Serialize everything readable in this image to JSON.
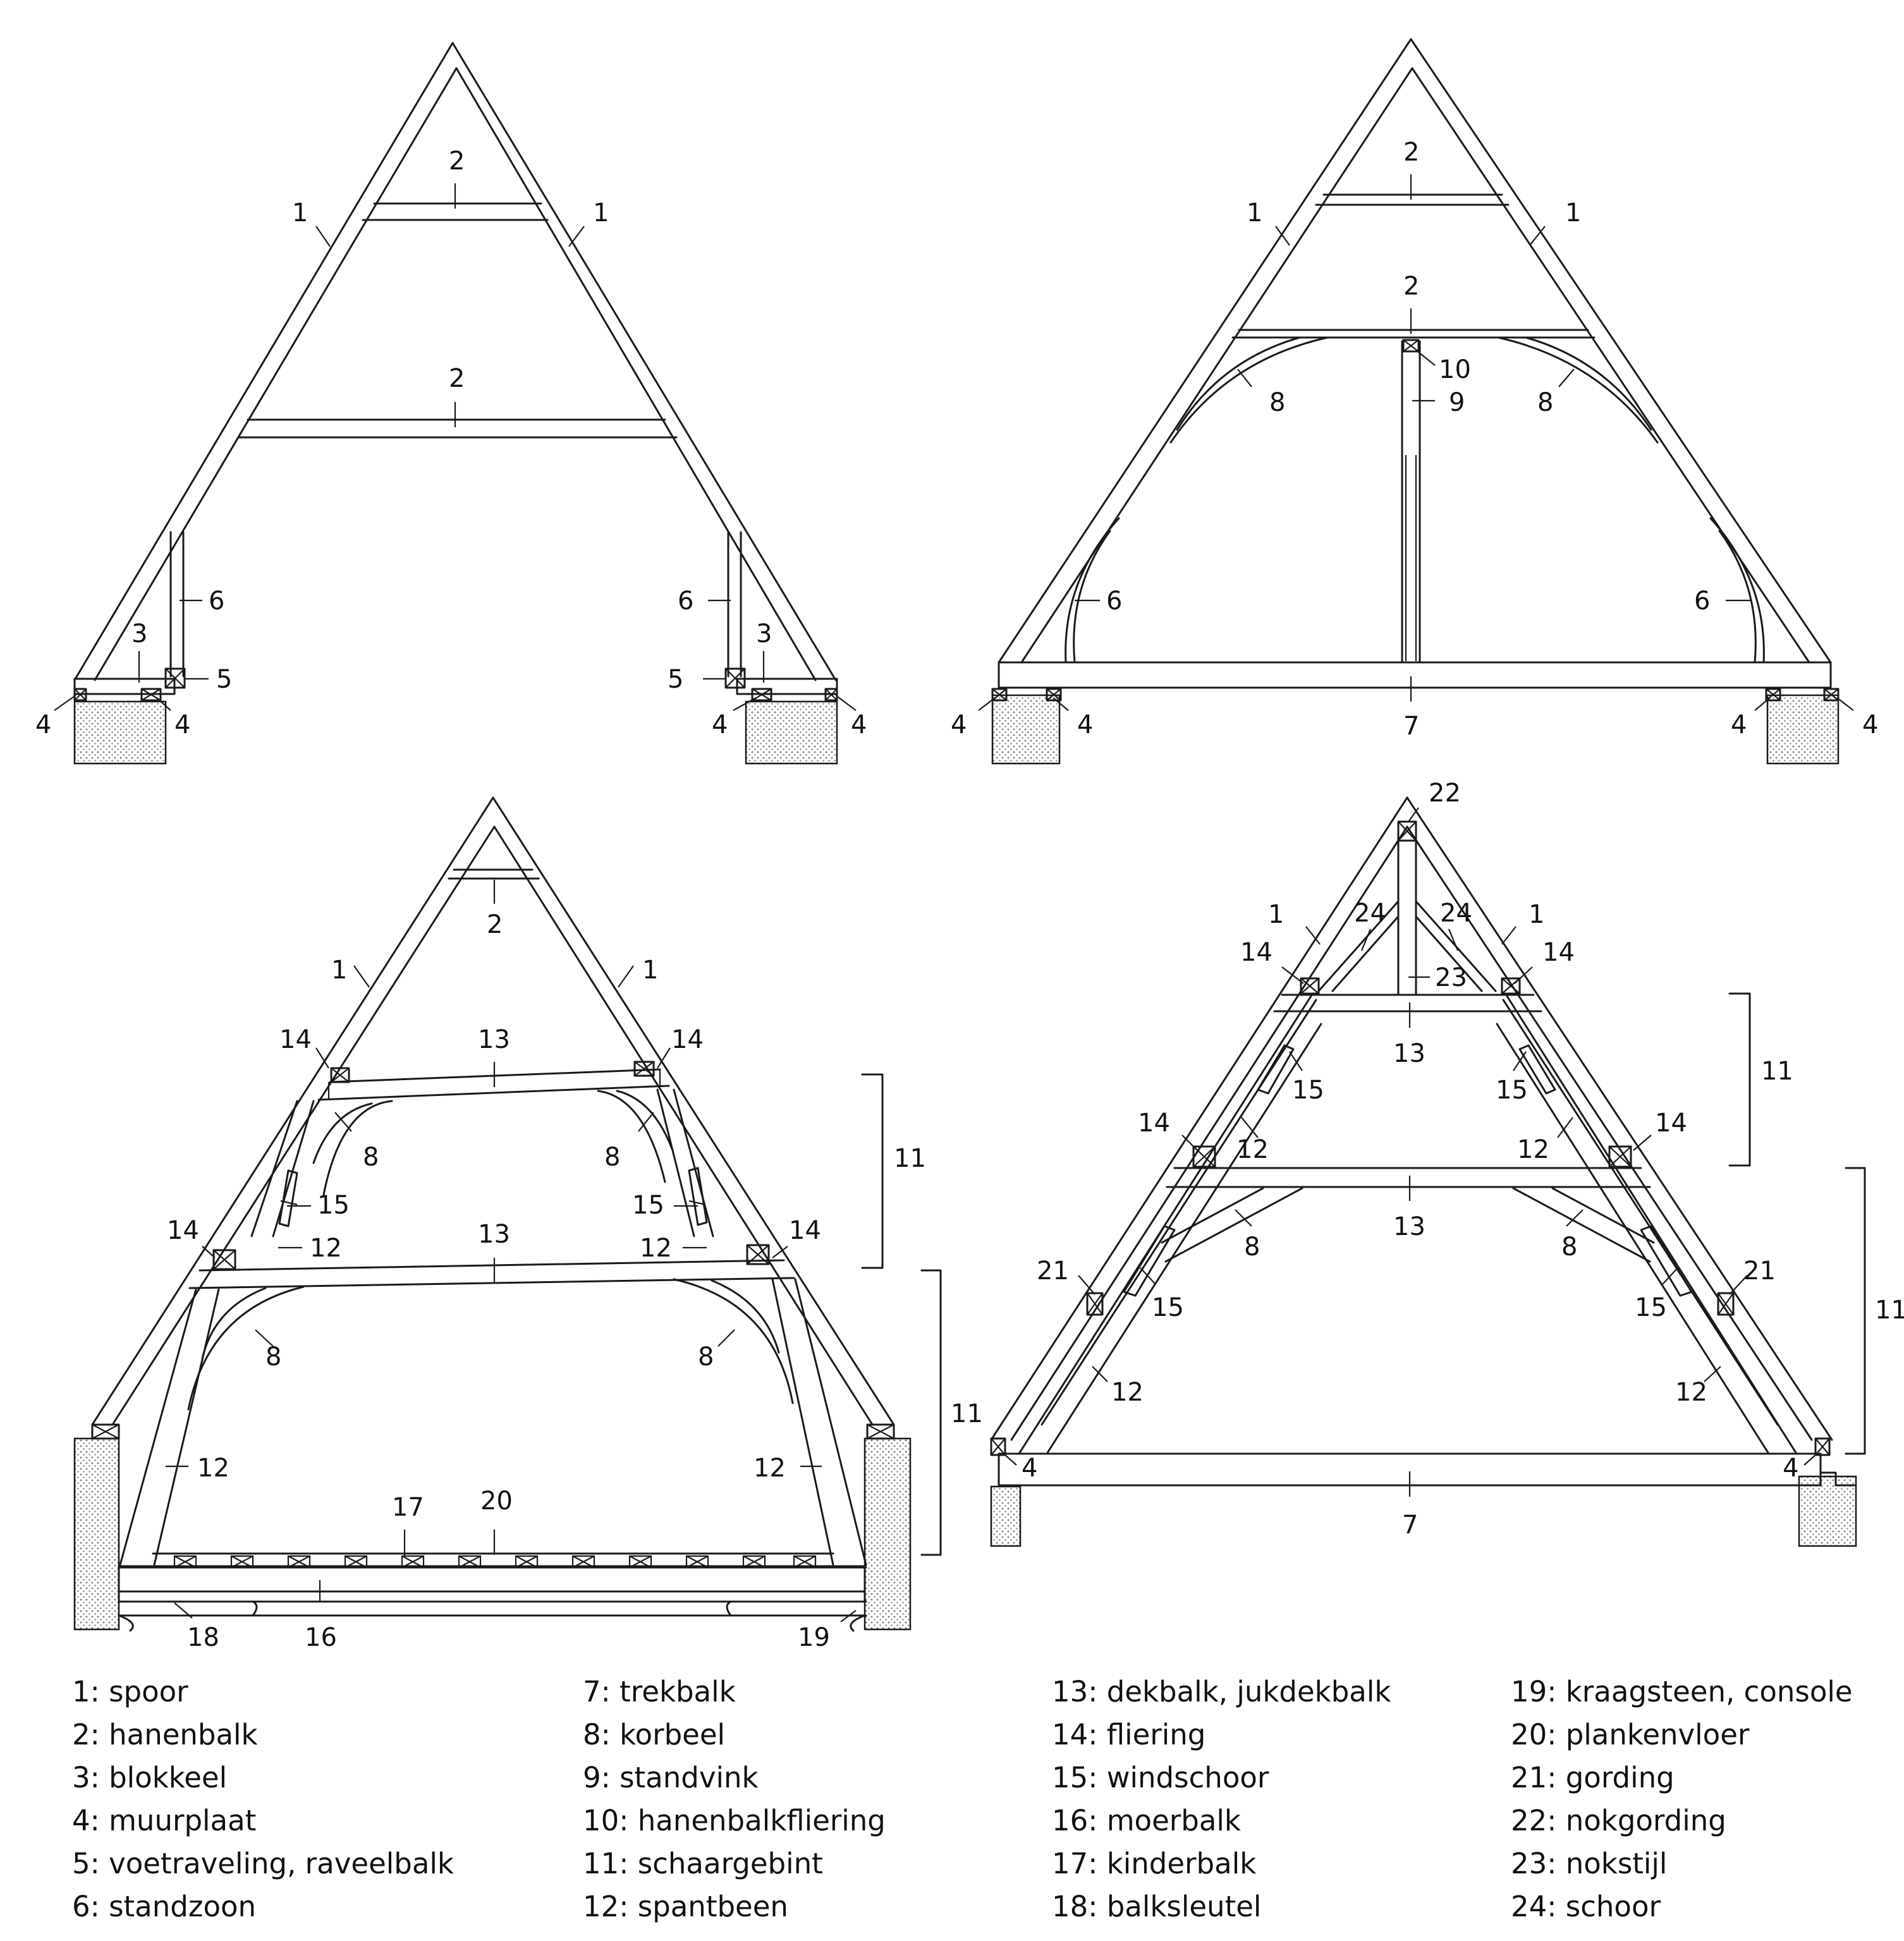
{
  "numbers": {
    "n1": "1",
    "n2": "2",
    "n3": "3",
    "n4": "4",
    "n5": "5",
    "n6": "6",
    "n7": "7",
    "n8": "8",
    "n9": "9",
    "n10": "10",
    "n11": "11",
    "n12": "12",
    "n13": "13",
    "n14": "14",
    "n15": "15",
    "n16": "16",
    "n17": "17",
    "n18": "18",
    "n19": "19",
    "n20": "20",
    "n21": "21",
    "n22": "22",
    "n23": "23",
    "n24": "24"
  },
  "legend": {
    "col1": [
      "1: spoor",
      "2: hanenbalk",
      "3: blokkeel",
      "4: muurplaat",
      "5: voetraveling, raveelbalk",
      "6: standzoon"
    ],
    "col2": [
      "7: trekbalk",
      "8: korbeel",
      "9: standvink",
      "10: hanenbalkfliering",
      "11: schaargebint",
      "12: spantbeen"
    ],
    "col3": [
      "13: dekbalk, jukdekbalk",
      "14: fliering",
      "15: windschoor",
      "16: moerbalk",
      "17: kinderbalk",
      "18: balksleutel"
    ],
    "col4": [
      "19: kraagsteen, console",
      "20: plankenvloer",
      "21: gording",
      "22: nokgording",
      "23: nokstijl",
      "24: schoor"
    ]
  }
}
